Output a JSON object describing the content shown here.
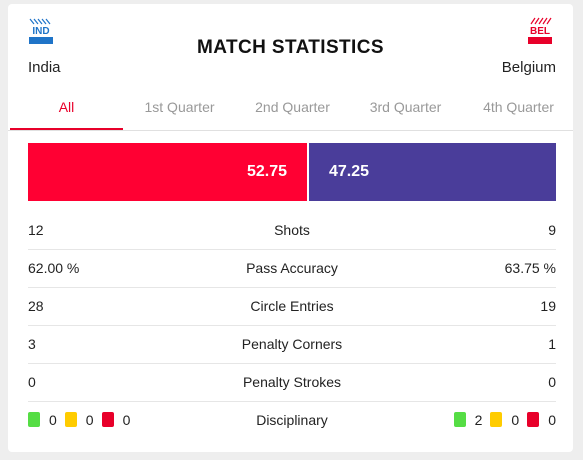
{
  "title": "MATCH STATISTICS",
  "teams": {
    "home": {
      "code": "IND",
      "name": "India",
      "color": "#1f74c8"
    },
    "away": {
      "code": "BEL",
      "name": "Belgium",
      "color": "#e8002a"
    }
  },
  "tabs": [
    "All",
    "1st Quarter",
    "2nd Quarter",
    "3rd Quarter",
    "4th Quarter"
  ],
  "active_tab": "All",
  "possession": {
    "home": "52.75",
    "away": "47.25",
    "home_value": 52.75,
    "away_value": 47.25,
    "home_color": "#ff0033",
    "away_color": "#4a3d9a"
  },
  "stats": [
    {
      "label": "Shots",
      "home": "12",
      "away": "9"
    },
    {
      "label": "Pass Accuracy",
      "home": "62.00 %",
      "away": "63.75 %"
    },
    {
      "label": "Circle Entries",
      "home": "28",
      "away": "19"
    },
    {
      "label": "Penalty Corners",
      "home": "3",
      "away": "1"
    },
    {
      "label": "Penalty Strokes",
      "home": "0",
      "away": "0"
    }
  ],
  "disciplinary": {
    "label": "Disciplinary",
    "home": {
      "green": "0",
      "yellow": "0",
      "red": "0"
    },
    "away": {
      "green": "2",
      "yellow": "0",
      "red": "0"
    },
    "colors": {
      "green": "#55dd44",
      "yellow": "#ffcc00",
      "red": "#e8002a"
    }
  }
}
